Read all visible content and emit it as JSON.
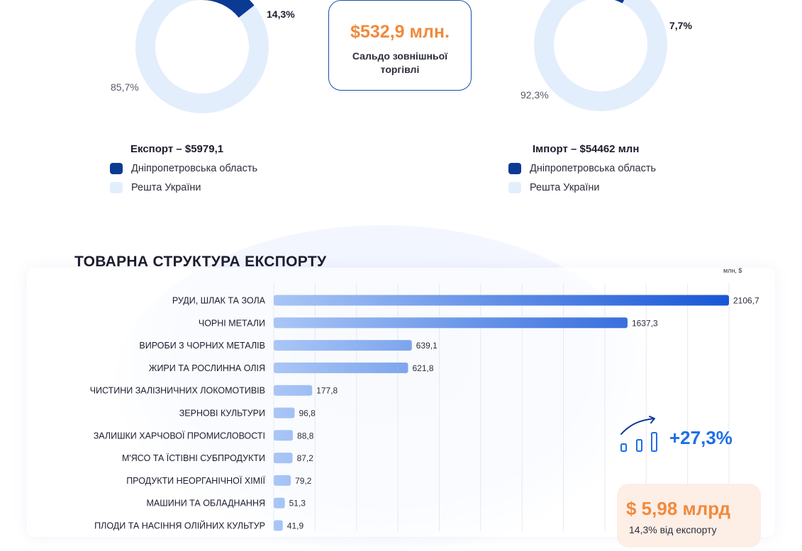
{
  "colors": {
    "dnipro": "#0b3a94",
    "rest": "#e3eefc",
    "accent_orange": "#f08a3c",
    "accent_blue": "#1f6fe5",
    "bar_start": "#a9c6f6",
    "bar_end": "#1856d6"
  },
  "export_donut": {
    "dnipro_pct": 14.3,
    "rest_pct": 85.7,
    "dnipro_label": "14,3%",
    "rest_label": "85,7%",
    "legend_title": "Експорт – $5979,1",
    "legend_dnipro": "Дніпропетровська область",
    "legend_rest": "Решта України"
  },
  "import_donut": {
    "dnipro_pct": 7.7,
    "rest_pct": 92.3,
    "dnipro_label": "7,7%",
    "rest_label": "92,3%",
    "legend_title": "Імпорт – $54462 млн",
    "legend_dnipro": "Дніпропетровська область",
    "legend_rest": "Решта України"
  },
  "trade_balance": {
    "value": "$532,9 млн.",
    "label": "Сальдо зовнішньої торгівлі"
  },
  "chart_data": {
    "type": "bar",
    "orientation": "horizontal",
    "title": "ТОВАРНА СТРУКТУРА ЕКСПОРТУ",
    "unit": "млн, $",
    "categories": [
      "РУДИ, ШЛАК ТА ЗОЛА",
      "ЧОРНІ МЕТАЛИ",
      "ВИРОБИ З ЧОРНИХ МЕТАЛІВ",
      "ЖИРИ ТА РОСЛИННА ОЛІЯ",
      "ЧИСТИНИ ЗАЛІЗНИЧНИХ ЛОКОМОТИВІВ",
      "ЗЕРНОВІ КУЛЬТУРИ",
      "ЗАЛИШКИ ХАРЧОВОЇ ПРОМИСЛОВОСТІ",
      "М'ЯСО ТА ЇСТІВНІ СУБПРОДУКТИ",
      "ПРОДУКТИ НЕОРГАНІЧНОЇ ХІМІЇ",
      "МАШИНИ ТА ОБЛАДНАННЯ",
      "ПЛОДИ ТА НАСІННЯ ОЛІЙНИХ КУЛЬТУР"
    ],
    "values": [
      2106.7,
      1637.3,
      639.1,
      621.8,
      177.8,
      96.8,
      88.8,
      87.2,
      79.2,
      51.3,
      41.9
    ],
    "value_labels": [
      "2106,7",
      "1637,3",
      "639,1",
      "621,8",
      "177,8",
      "96,8",
      "88,8",
      "87,2",
      "79,2",
      "51,3",
      "41,9"
    ],
    "xlim": [
      0,
      2106.7
    ],
    "grid": true
  },
  "growth": {
    "icon": "growth-chart-icon",
    "value": "+27,3%"
  },
  "export_total": {
    "value": "$ 5,98 млрд",
    "subtitle": "14,3% від експорту"
  }
}
